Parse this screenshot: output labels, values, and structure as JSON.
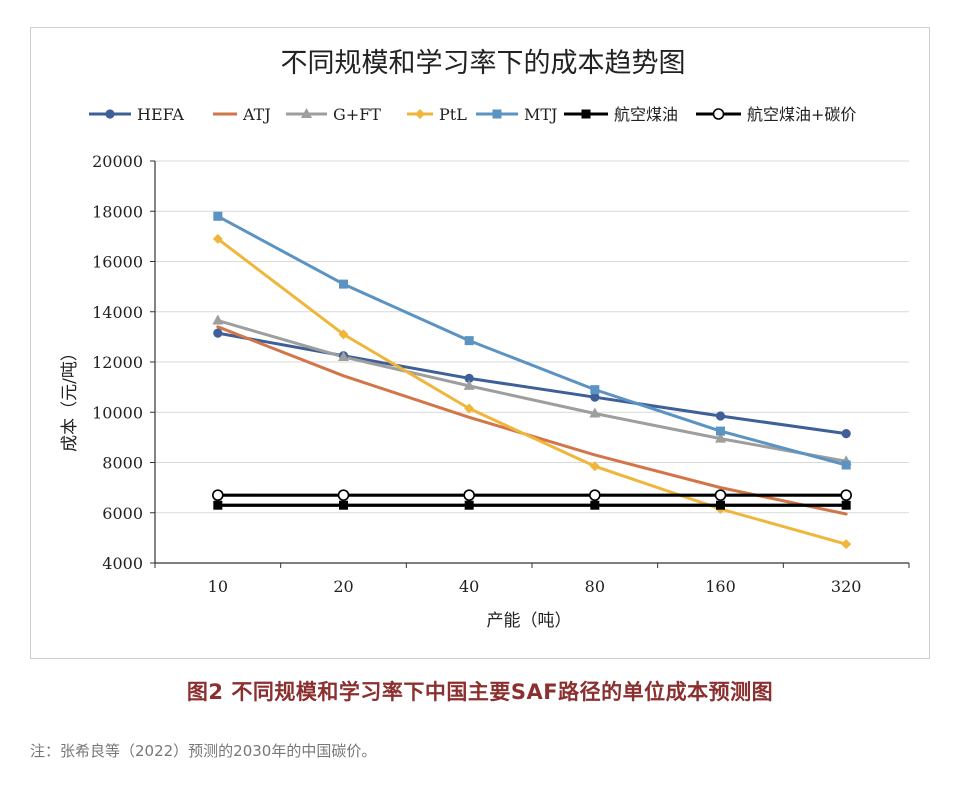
{
  "chart_data": {
    "type": "line",
    "title": "不同规模和学习率下的成本趋势图",
    "xlabel": "产能（吨）",
    "ylabel": "成本（元/吨）",
    "categories": [
      "10",
      "20",
      "40",
      "80",
      "160",
      "320"
    ],
    "ylim": [
      4000,
      20000
    ],
    "yticks": [
      "4000",
      "6000",
      "8000",
      "10000",
      "12000",
      "14000",
      "16000",
      "18000",
      "20000"
    ],
    "grid": true,
    "legend_position": "top",
    "series": [
      {
        "name": "HEFA",
        "color": "#3e5f98",
        "marker": "circle",
        "values": [
          13150,
          12250,
          11350,
          10600,
          9850,
          9150
        ]
      },
      {
        "name": "ATJ",
        "color": "#d2764a",
        "marker": "none",
        "values": [
          13400,
          11450,
          9800,
          8300,
          7000,
          5950
        ]
      },
      {
        "name": "G+FT",
        "color": "#9e9e9e",
        "marker": "triangle",
        "values": [
          13650,
          12200,
          11050,
          9950,
          8950,
          8050
        ]
      },
      {
        "name": "PtL",
        "color": "#f0b63c",
        "marker": "diamond",
        "values": [
          16900,
          13100,
          10150,
          7850,
          6150,
          4750
        ]
      },
      {
        "name": "MTJ",
        "color": "#5b93c2",
        "marker": "square",
        "values": [
          17800,
          15100,
          12850,
          10900,
          9250,
          7900
        ]
      },
      {
        "name": "航空煤油",
        "color": "#000000",
        "marker": "filled-square",
        "values": [
          6300,
          6300,
          6300,
          6300,
          6300,
          6300
        ]
      },
      {
        "name": "航空煤油+碳价",
        "color": "#000000",
        "marker": "open-circle",
        "values": [
          6700,
          6700,
          6700,
          6700,
          6700,
          6700
        ]
      }
    ]
  },
  "caption": "图2  不同规模和学习率下中国主要SAF路径的单位成本预测图",
  "note": "注：张希良等（2022）预测的2030年的中国碳价。"
}
